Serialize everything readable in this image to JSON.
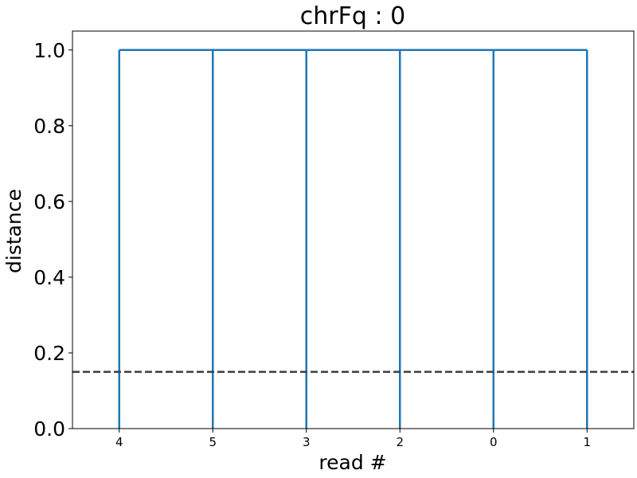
{
  "chart_data": {
    "type": "dendrogram",
    "title": "chrFq : 0",
    "xlabel": "read #",
    "ylabel": "distance",
    "ylim": [
      0,
      1.05
    ],
    "leaves": [
      "4",
      "5",
      "3",
      "2",
      "0",
      "1"
    ],
    "yticks": [
      0.0,
      0.2,
      0.4,
      0.6,
      0.8,
      1.0
    ],
    "ytick_labels": [
      "0.0",
      "0.2",
      "0.4",
      "0.6",
      "0.8",
      "1.0"
    ],
    "merge_height": 1.0,
    "threshold": 0.15,
    "grid": false,
    "colors": {
      "links": "#1f77b4",
      "threshold": "#404040"
    }
  }
}
